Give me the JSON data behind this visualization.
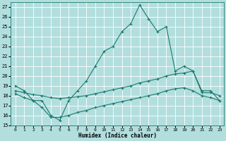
{
  "xlabel": "Humidex (Indice chaleur)",
  "bg_color": "#b2dede",
  "grid_color": "#ffffff",
  "line_color": "#1a7a6e",
  "xlim": [
    -0.5,
    23.5
  ],
  "ylim": [
    15,
    27.5
  ],
  "yticks": [
    15,
    16,
    17,
    18,
    19,
    20,
    21,
    22,
    23,
    24,
    25,
    26,
    27
  ],
  "xticks": [
    0,
    1,
    2,
    3,
    4,
    5,
    6,
    7,
    8,
    9,
    10,
    11,
    12,
    13,
    14,
    15,
    16,
    17,
    18,
    19,
    20,
    21,
    22,
    23
  ],
  "line1_x": [
    0,
    1,
    2,
    3,
    4,
    5,
    6,
    7,
    8,
    9,
    10,
    11,
    12,
    13,
    14,
    15,
    16,
    17,
    18,
    19,
    20,
    21,
    22,
    23
  ],
  "line1_y": [
    19.0,
    18.5,
    17.5,
    17.5,
    16.0,
    15.5,
    17.5,
    18.5,
    19.5,
    21.0,
    22.5,
    23.0,
    24.5,
    25.3,
    27.2,
    25.8,
    24.5,
    25.0,
    20.5,
    21.0,
    20.5,
    18.5,
    18.5,
    17.5
  ],
  "line2_x": [
    0,
    1,
    2,
    3,
    4,
    5,
    6,
    7,
    8,
    9,
    10,
    11,
    12,
    13,
    14,
    15,
    16,
    17,
    18,
    19,
    20,
    21,
    22,
    23
  ],
  "line2_y": [
    18.5,
    18.3,
    18.1,
    18.0,
    17.8,
    17.7,
    17.8,
    17.9,
    18.0,
    18.2,
    18.4,
    18.6,
    18.8,
    19.0,
    19.3,
    19.5,
    19.7,
    20.0,
    20.2,
    20.3,
    20.5,
    18.3,
    18.3,
    18.0
  ],
  "line3_x": [
    0,
    1,
    2,
    3,
    4,
    5,
    6,
    7,
    8,
    9,
    10,
    11,
    12,
    13,
    14,
    15,
    16,
    17,
    18,
    19,
    20,
    21,
    22,
    23
  ],
  "line3_y": [
    18.2,
    17.8,
    17.5,
    16.8,
    15.8,
    15.8,
    16.0,
    16.3,
    16.5,
    16.8,
    17.0,
    17.2,
    17.4,
    17.6,
    17.8,
    18.0,
    18.2,
    18.5,
    18.7,
    18.8,
    18.5,
    18.0,
    17.8,
    17.5
  ]
}
